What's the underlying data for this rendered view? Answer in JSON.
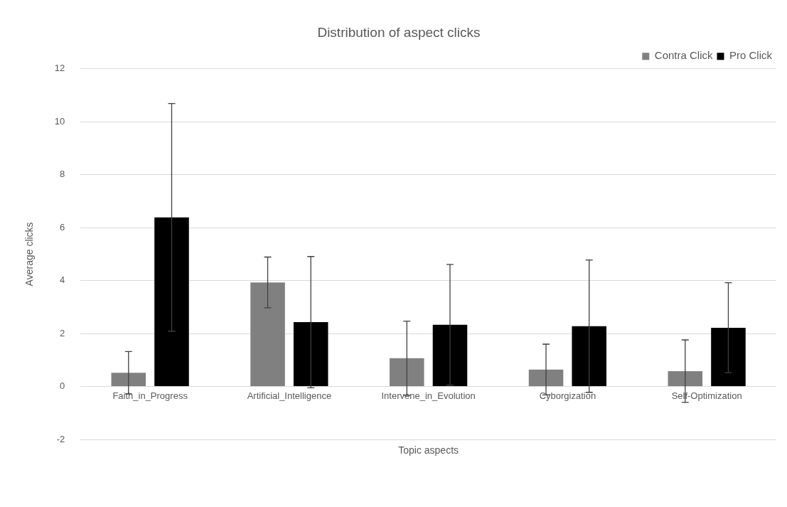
{
  "chart_data": {
    "type": "bar",
    "title": "Distribution of aspect clicks",
    "xlabel": "Topic aspects",
    "ylabel": "Average clicks",
    "categories": [
      "Faith_in_Progress",
      "Artificial_Intelligence",
      "Intervene_in_Evolution",
      "Cyborgization",
      "Self-Optimization"
    ],
    "series": [
      {
        "name": "Contra Click",
        "color": "#808080",
        "values": [
          0.52,
          3.93,
          1.07,
          0.64,
          0.58
        ],
        "errors": [
          0.8,
          0.96,
          1.4,
          0.96,
          1.18
        ]
      },
      {
        "name": "Pro Click",
        "color": "#000000",
        "values": [
          6.39,
          2.43,
          2.33,
          2.28,
          2.22
        ],
        "errors": [
          4.3,
          2.48,
          2.28,
          2.5,
          1.7
        ]
      }
    ],
    "ylim": [
      -2,
      12
    ],
    "yticks": [
      -2,
      0,
      2,
      4,
      6,
      8,
      10,
      12
    ],
    "grid": "y",
    "legend": "top right"
  }
}
